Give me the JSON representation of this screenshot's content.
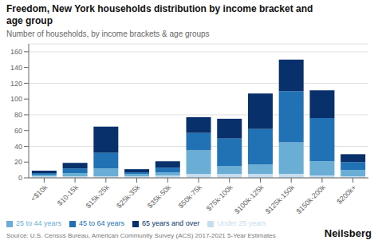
{
  "chart_data": {
    "type": "bar",
    "title": "Freedom, New York households distribution by income bracket and\nage group",
    "subtitle": "Number of households, by income brackets & age groups",
    "annotations": [
      "Source: U.S. Census Bureau, American Community Survey (ACS) 2017-2021 5-Year Estimates",
      "Neilsberg"
    ],
    "categories": [
      "<$10k",
      "$10-15k",
      "$15k-25k",
      "$25k-35k",
      "$35k-50k",
      "$50k-75k",
      "$75k-100k",
      "$100k-125k",
      "$125k-150k",
      "$150k-200k",
      "$200k+"
    ],
    "series": [
      {
        "name": "Under 25 years",
        "color": "#c6ddf0",
        "values": [
          2,
          2,
          2,
          2,
          3,
          5,
          5,
          5,
          5,
          3,
          2
        ]
      },
      {
        "name": "25 to 44 years",
        "color": "#6aaed6",
        "values": [
          2,
          4,
          10,
          3,
          4,
          30,
          10,
          12,
          40,
          18,
          8
        ]
      },
      {
        "name": "45 to 64 years",
        "color": "#2171b5",
        "values": [
          2,
          6,
          20,
          2,
          6,
          22,
          35,
          45,
          65,
          55,
          10
        ]
      },
      {
        "name": "65 years and over",
        "color": "#08306b",
        "values": [
          3,
          7,
          33,
          4,
          8,
          20,
          25,
          45,
          40,
          35,
          10
        ]
      }
    ],
    "stacked": true,
    "ylim": [
      0,
      170
    ],
    "yticks": [
      0,
      20,
      40,
      60,
      80,
      100,
      120,
      140,
      160
    ],
    "grid": true,
    "legend": "bottom"
  }
}
